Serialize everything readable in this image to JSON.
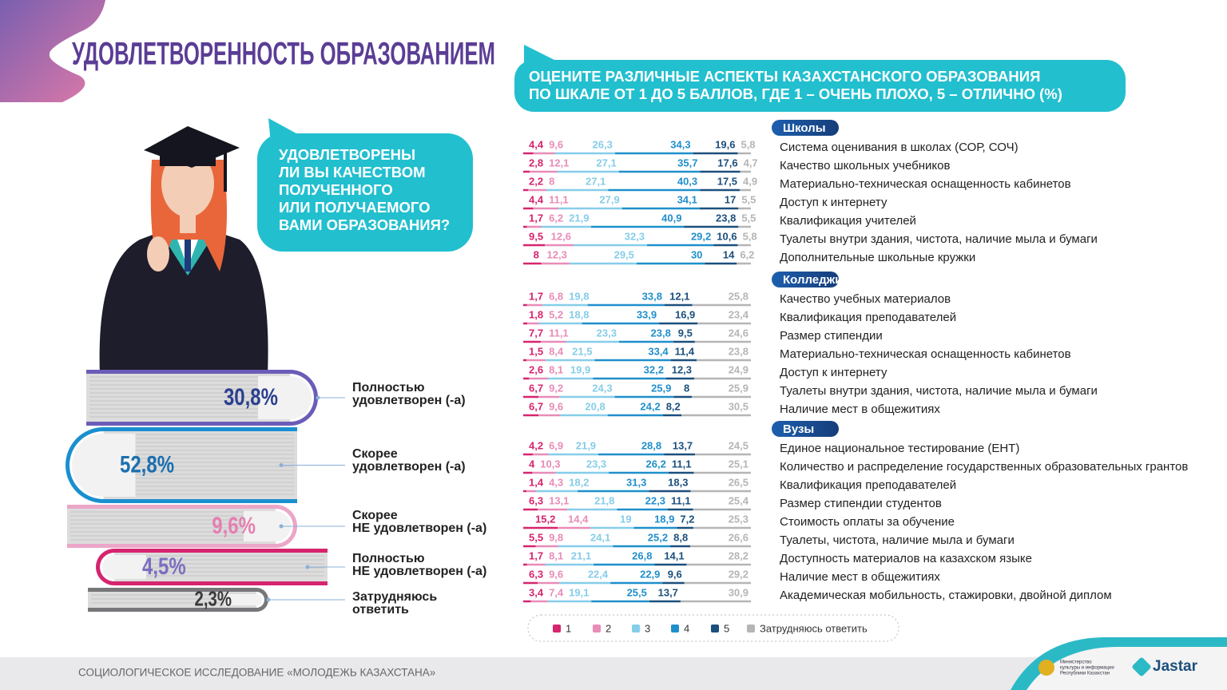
{
  "header": {
    "title": "УДОВЛЕТВОРЕННОСТЬ ОБРАЗОВАНИЕМ",
    "subtitle_lines": [
      "ОЦЕНИТЕ РАЗЛИЧНЫЕ АСПЕКТЫ КАЗАХСТАНСКОГО ОБРАЗОВАНИЯ",
      "ПО ШКАЛЕ ОТ 1 ДО 5 БАЛЛОВ, ГДЕ 1 – ОЧЕНЬ ПЛОХО, 5 – ОТЛИЧНО (%)"
    ]
  },
  "question": {
    "lines": [
      "УДОВЛЕТВОРЕНЫ",
      "ЛИ ВЫ КАЧЕСТВОМ",
      "ПОЛУЧЕННОГО",
      "ИЛИ ПОЛУЧАЕМОГО",
      "ВАМИ ОБРАЗОВАНИЯ?"
    ]
  },
  "books": [
    {
      "lines": [
        "Полностью",
        "удовлетворен (-а)"
      ],
      "value": 30.8,
      "value_label": "30,8%"
    },
    {
      "lines": [
        "Скорее",
        "удовлетворен (-а)"
      ],
      "value": 52.8,
      "value_label": "52,8%"
    },
    {
      "lines": [
        "Скорее",
        "НЕ удовлетворен (-а)"
      ],
      "value": 9.6,
      "value_label": "9,6%"
    },
    {
      "lines": [
        "Полностью",
        "НЕ удовлетворен (-а)"
      ],
      "value": 4.5,
      "value_label": "4,5%"
    },
    {
      "lines": [
        "Затрудняюсь",
        "ответить"
      ],
      "value": 2.3,
      "value_label": "2,3%"
    }
  ],
  "legend": [
    {
      "label": "1",
      "color": "#d6246e"
    },
    {
      "label": "2",
      "color": "#e88cb8"
    },
    {
      "label": "3",
      "color": "#86cde9"
    },
    {
      "label": "4",
      "color": "#1f8fcb"
    },
    {
      "label": "5",
      "color": "#1b4f7d"
    },
    {
      "label": "Затрудняюсь ответить",
      "color": "#b5b5b5"
    }
  ],
  "sections": [
    {
      "title": "Школы",
      "rows": [
        {
          "label": "Система оценивания в школах (СОР, СОЧ)",
          "values": [
            4.4,
            9.6,
            26.3,
            34.3,
            19.6,
            5.8
          ],
          "value_labels": [
            "4,4",
            "9,6",
            "26,3",
            "34,3",
            "19,6",
            "5,8"
          ]
        },
        {
          "label": "Качество школьных учебников",
          "values": [
            2.8,
            12.1,
            27.1,
            35.7,
            17.6,
            4.7
          ],
          "value_labels": [
            "2,8",
            "12,1",
            "27,1",
            "35,7",
            "17,6",
            "4,7"
          ]
        },
        {
          "label": "Материально-техническая оснащенность кабинетов",
          "values": [
            2.2,
            8,
            27.1,
            40.3,
            17.5,
            4.9
          ],
          "value_labels": [
            "2,2",
            "8",
            "27,1",
            "40,3",
            "17,5",
            "4,9"
          ]
        },
        {
          "label": "Доступ к интернету",
          "values": [
            4.4,
            11.1,
            27.9,
            34.1,
            17,
            5.5
          ],
          "value_labels": [
            "4,4",
            "11,1",
            "27,9",
            "34,1",
            "17",
            "5,5"
          ]
        },
        {
          "label": "Квалификация учителей",
          "values": [
            1.7,
            6.2,
            21.9,
            40.9,
            23.8,
            5.5
          ],
          "value_labels": [
            "1,7",
            "6,2",
            "21,9",
            "40,9",
            "23,8",
            "5,5"
          ]
        },
        {
          "label": "Туалеты внутри здания, чистота, наличие мыла и бумаги",
          "values": [
            9.5,
            12.6,
            32.3,
            29.2,
            10.6,
            5.8
          ],
          "value_labels": [
            "9,5",
            "12,6",
            "32,3",
            "29,2",
            "10,6",
            "5,8"
          ]
        },
        {
          "label": "Дополнительные школьные кружки",
          "values": [
            8,
            12.3,
            29.5,
            30,
            14,
            6.2
          ],
          "value_labels": [
            "8",
            "12,3",
            "29,5",
            "30",
            "14",
            "6,2"
          ]
        }
      ]
    },
    {
      "title": "Колледжи",
      "rows": [
        {
          "label": "Качество учебных материалов",
          "values": [
            1.7,
            6.8,
            19.8,
            33.8,
            12.1,
            25.8
          ],
          "value_labels": [
            "1,7",
            "6,8",
            "19,8",
            "33,8",
            "12,1",
            "25,8"
          ]
        },
        {
          "label": "Квалификация преподавателей",
          "values": [
            1.8,
            5.2,
            18.8,
            33.9,
            16.9,
            23.4
          ],
          "value_labels": [
            "1,8",
            "5,2",
            "18,8",
            "33,9",
            "16,9",
            "23,4"
          ]
        },
        {
          "label": "Размер стипендии",
          "values": [
            7.7,
            11.1,
            23.3,
            23.8,
            9.5,
            24.6
          ],
          "value_labels": [
            "7,7",
            "11,1",
            "23,3",
            "23,8",
            "9,5",
            "24,6"
          ]
        },
        {
          "label": "Материально-техническая оснащенность кабинетов",
          "values": [
            1.5,
            8.4,
            21.5,
            33.4,
            11.4,
            23.8
          ],
          "value_labels": [
            "1,5",
            "8,4",
            "21,5",
            "33,4",
            "11,4",
            "23,8"
          ]
        },
        {
          "label": "Доступ к интернету",
          "values": [
            2.6,
            8.1,
            19.9,
            32.2,
            12.3,
            24.9
          ],
          "value_labels": [
            "2,6",
            "8,1",
            "19,9",
            "32,2",
            "12,3",
            "24,9"
          ]
        },
        {
          "label": "Туалеты внутри здания, чистота, наличие мыла и бумаги",
          "values": [
            6.7,
            9.2,
            24.3,
            25.9,
            8,
            25.9
          ],
          "value_labels": [
            "6,7",
            "9,2",
            "24,3",
            "25,9",
            "8",
            "25,9"
          ]
        },
        {
          "label": "Наличие мест в общежитиях",
          "values": [
            6.7,
            9.6,
            20.8,
            24.2,
            8.2,
            30.5
          ],
          "value_labels": [
            "6,7",
            "9,6",
            "20,8",
            "24,2",
            "8,2",
            "30,5"
          ]
        }
      ]
    },
    {
      "title": "Вузы",
      "rows": [
        {
          "label": "Единое национальное тестирование (ЕНТ)",
          "values": [
            4.2,
            6.9,
            21.9,
            28.8,
            13.7,
            24.5
          ],
          "value_labels": [
            "4,2",
            "6,9",
            "21,9",
            "28,8",
            "13,7",
            "24,5"
          ]
        },
        {
          "label": "Количество и распределение государственных образовательных грантов",
          "values": [
            4,
            10.3,
            23.3,
            26.2,
            11.1,
            25.1
          ],
          "value_labels": [
            "4",
            "10,3",
            "23,3",
            "26,2",
            "11,1",
            "25,1"
          ]
        },
        {
          "label": "Квалификация преподавателей",
          "values": [
            1.4,
            4.3,
            18.2,
            31.3,
            18.3,
            26.5
          ],
          "value_labels": [
            "1,4",
            "4,3",
            "18,2",
            "31,3",
            "18,3",
            "26,5"
          ]
        },
        {
          "label": "Размер стипендии студентов",
          "values": [
            6.3,
            13.1,
            21.8,
            22.3,
            11.1,
            25.4
          ],
          "value_labels": [
            "6,3",
            "13,1",
            "21,8",
            "22,3",
            "11,1",
            "25,4"
          ]
        },
        {
          "label": "Стоимость оплаты за обучение",
          "values": [
            15.2,
            14.4,
            19,
            18.9,
            7.2,
            25.3
          ],
          "value_labels": [
            "15,2",
            "14,4",
            "19",
            "18,9",
            "7,2",
            "25,3"
          ]
        },
        {
          "label": "Туалеты, чистота, наличие мыла и бумаги",
          "values": [
            5.5,
            9.8,
            24.1,
            25.2,
            8.8,
            26.6
          ],
          "value_labels": [
            "5,5",
            "9,8",
            "24,1",
            "25,2",
            "8,8",
            "26,6"
          ]
        },
        {
          "label": "Доступность материалов на казахском языке",
          "values": [
            1.7,
            8.1,
            21.1,
            26.8,
            14.1,
            28.2
          ],
          "value_labels": [
            "1,7",
            "8,1",
            "21,1",
            "26,8",
            "14,1",
            "28,2"
          ]
        },
        {
          "label": "Наличие мест в общежитиях",
          "values": [
            6.3,
            9.6,
            22.4,
            22.9,
            9.6,
            29.2
          ],
          "value_labels": [
            "6,3",
            "9,6",
            "22,4",
            "22,9",
            "9,6",
            "29,2"
          ]
        },
        {
          "label": "Академическая мобильность, стажировки, двойной диплом",
          "values": [
            3.4,
            7.4,
            19.1,
            25.5,
            13.7,
            30.9
          ],
          "value_labels": [
            "3,4",
            "7,4",
            "19,1",
            "25,5",
            "13,7",
            "30,9"
          ]
        }
      ]
    }
  ],
  "footer": {
    "text": "СОЦИОЛОГИЧЕСКОЕ ИССЛЕДОВАНИЕ «МОЛОДЕЖЬ КАЗАХСТАНА»",
    "ministry_lines": [
      "Министерство",
      "культуры и информации",
      "Республики Казахстан"
    ],
    "brand": "Jastar"
  }
}
